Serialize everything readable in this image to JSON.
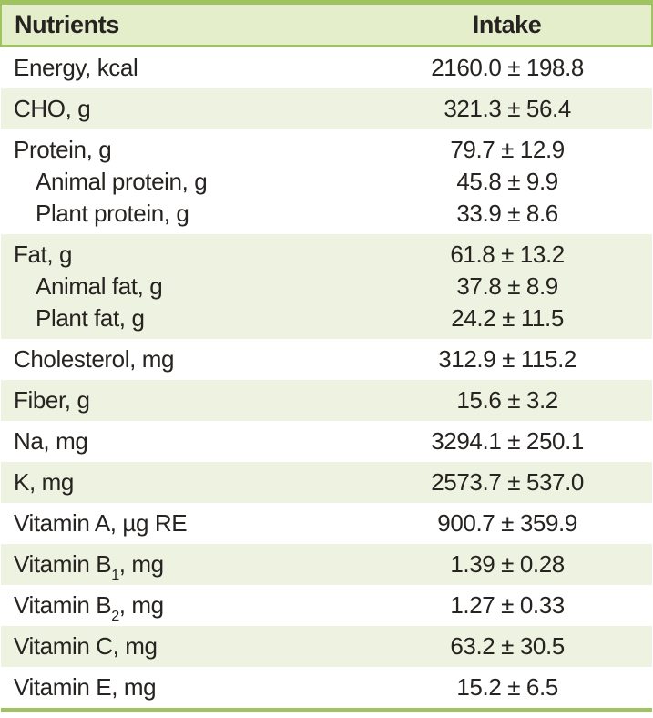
{
  "table": {
    "header": {
      "nutrients": "Nutrients",
      "intake": "Intake"
    },
    "colors": {
      "accent_border": "#9fc35e",
      "header_bg": "#e4eecb",
      "shaded_row_bg": "#eef2e1",
      "unshaded_row_bg": "#ffffff",
      "text": "#262321"
    },
    "groups": [
      {
        "shaded": false,
        "rows": [
          {
            "label": "Energy, kcal",
            "value": "2160.0 ± 198.8"
          }
        ]
      },
      {
        "shaded": true,
        "rows": [
          {
            "label": "CHO, g",
            "value": "321.3 ± 56.4"
          }
        ]
      },
      {
        "shaded": false,
        "rows": [
          {
            "label": "Protein, g",
            "value": "79.7 ± 12.9"
          },
          {
            "label": "Animal protein, g",
            "value": "45.8 ± 9.9",
            "indent": true
          },
          {
            "label": "Plant protein, g",
            "value": "33.9 ± 8.6",
            "indent": true
          }
        ]
      },
      {
        "shaded": true,
        "rows": [
          {
            "label": "Fat, g",
            "value": "61.8 ± 13.2"
          },
          {
            "label": "Animal fat, g",
            "value": "37.8 ± 8.9",
            "indent": true
          },
          {
            "label": "Plant fat, g",
            "value": "24.2 ± 11.5",
            "indent": true
          }
        ]
      },
      {
        "shaded": false,
        "rows": [
          {
            "label": "Cholesterol, mg",
            "value": "312.9 ± 115.2"
          }
        ]
      },
      {
        "shaded": true,
        "rows": [
          {
            "label": "Fiber, g",
            "value": "15.6 ± 3.2"
          }
        ]
      },
      {
        "shaded": false,
        "rows": [
          {
            "label": "Na, mg",
            "value": "3294.1 ± 250.1"
          }
        ]
      },
      {
        "shaded": true,
        "rows": [
          {
            "label": "K, mg",
            "value": "2573.7 ± 537.0"
          }
        ]
      },
      {
        "shaded": false,
        "rows": [
          {
            "label": "Vitamin A, µg RE",
            "value": "900.7 ± 359.9"
          }
        ]
      },
      {
        "shaded": true,
        "rows": [
          {
            "label": "Vitamin B",
            "sub": "1",
            "label_after": ", mg",
            "value": "1.39 ± 0.28"
          }
        ]
      },
      {
        "shaded": false,
        "rows": [
          {
            "label": "Vitamin B",
            "sub": "2",
            "label_after": ", mg",
            "value": "1.27 ± 0.33"
          }
        ]
      },
      {
        "shaded": true,
        "rows": [
          {
            "label": "Vitamin C, mg",
            "value": "63.2 ± 30.5"
          }
        ]
      },
      {
        "shaded": false,
        "rows": [
          {
            "label": "Vitamin E, mg",
            "value": "15.2 ± 6.5"
          }
        ]
      }
    ]
  }
}
